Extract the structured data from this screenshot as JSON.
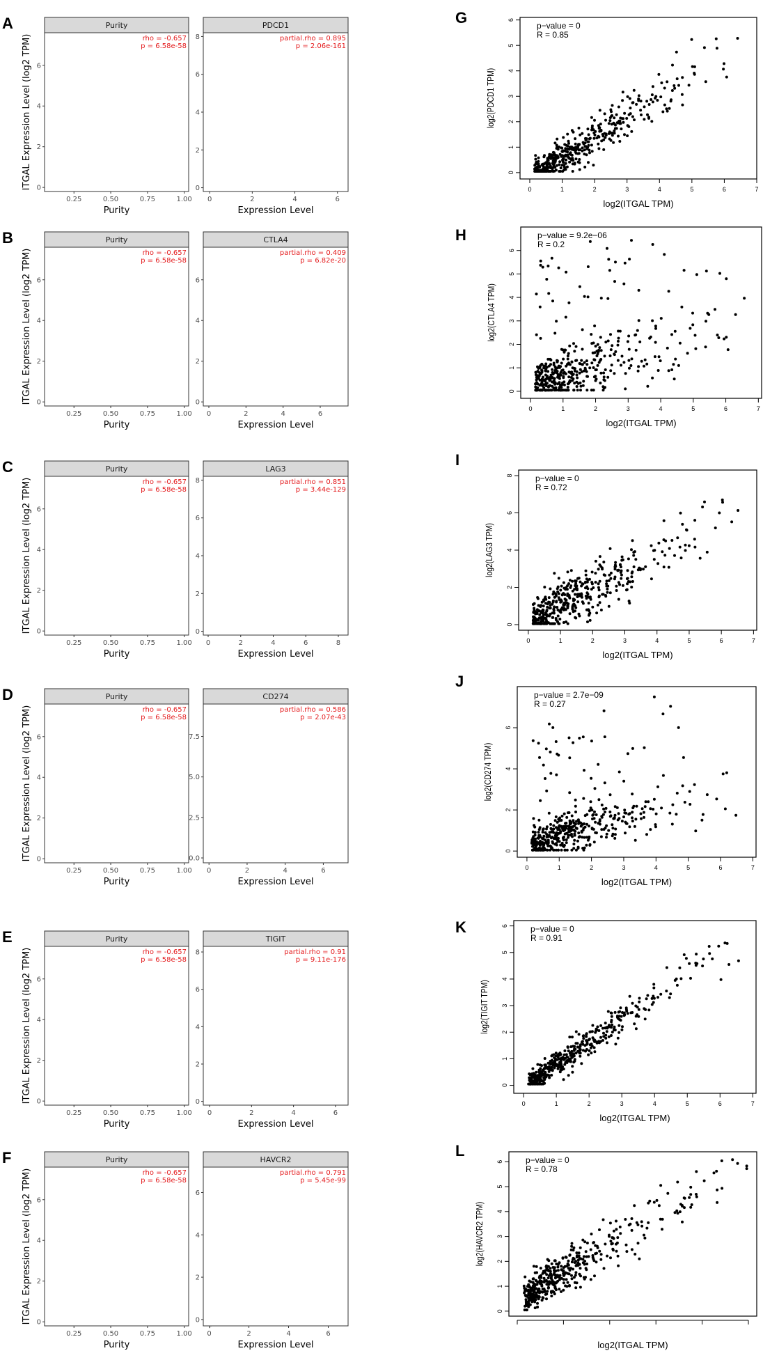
{
  "figure": {
    "left_ylabel": "ITGAL Expression Level (log2 TPM)",
    "left_xlabel_purity": "Purity",
    "left_xlabel_expr": "Expression Level",
    "right_xlabel": "log2(ITGAL TPM)"
  },
  "colors": {
    "fit_line": "#3366ff",
    "stat_text": "#e41a1c",
    "strip": "#d9d9d9",
    "points_left": "#333333",
    "points_right": "#000000"
  },
  "chart_data": [
    {
      "id": "A-purity",
      "letter": "A",
      "type": "scatter",
      "strip": "Purity",
      "xlabel": "Purity",
      "stat1": "rho = -0.657",
      "stat2": "p = 6.58e-58",
      "rho": -0.657,
      "p": "6.58e-58",
      "xlim": [
        0.05,
        1.03
      ],
      "ylim": [
        -0.2,
        7.6
      ],
      "xticks": [
        "0.25",
        "0.50",
        "0.75",
        "1.00"
      ],
      "yticks": [
        "0",
        "2",
        "4",
        "6"
      ],
      "fit": [
        [
          0.1,
          5.7
        ],
        [
          0.98,
          1.7
        ]
      ],
      "n": 400,
      "x_dist": "purity",
      "noise": 1.15
    },
    {
      "id": "A-PDCD1",
      "type": "scatter",
      "strip": "PDCD1",
      "xlabel": "Expression Level",
      "stat1": "partial.rho = 0.895",
      "stat2": "p = 2.06e-161",
      "rho": 0.895,
      "p": "2.06e-161",
      "xlim": [
        -0.3,
        6.5
      ],
      "ylim": [
        -0.2,
        8.2
      ],
      "xticks": [
        "0",
        "2",
        "4",
        "6"
      ],
      "yticks": [
        "0",
        "2",
        "4",
        "6",
        "8"
      ],
      "fit": [
        [
          0,
          1.2
        ],
        [
          6,
          7.3
        ]
      ],
      "n": 400,
      "x_dist": "expr",
      "x_scale": 1.6,
      "x_max": 6.3,
      "noise": 0.6
    },
    {
      "id": "B-purity",
      "letter": "B",
      "type": "scatter",
      "strip": "Purity",
      "xlabel": "Purity",
      "stat1": "rho = -0.657",
      "stat2": "p = 6.58e-58",
      "rho": -0.657,
      "p": "6.58e-58",
      "xlim": [
        0.05,
        1.03
      ],
      "ylim": [
        -0.2,
        7.6
      ],
      "xticks": [
        "0.25",
        "0.50",
        "0.75",
        "1.00"
      ],
      "yticks": [
        "0",
        "2",
        "4",
        "6"
      ],
      "fit": [
        [
          0.1,
          5.7
        ],
        [
          0.98,
          1.7
        ]
      ],
      "n": 400,
      "x_dist": "purity",
      "noise": 1.15
    },
    {
      "id": "B-CTLA4",
      "type": "scatter",
      "strip": "CTLA4",
      "xlabel": "Expression Level",
      "stat1": "partial.rho = 0.409",
      "stat2": "p = 6.82e-20",
      "rho": 0.409,
      "p": "6.82e-20",
      "xlim": [
        -0.3,
        7.5
      ],
      "ylim": [
        -0.2,
        7.6
      ],
      "xticks": [
        "0",
        "2",
        "4",
        "6"
      ],
      "yticks": [
        "0",
        "2",
        "4",
        "6"
      ],
      "fit": [
        [
          0,
          1.9
        ],
        [
          7.2,
          6.4
        ]
      ],
      "n": 400,
      "x_dist": "expr",
      "x_scale": 1.3,
      "x_max": 7.2,
      "noise": 1.3
    },
    {
      "id": "C-purity",
      "letter": "C",
      "type": "scatter",
      "strip": "Purity",
      "xlabel": "Purity",
      "stat1": "rho = -0.657",
      "stat2": "p = 6.58e-58",
      "rho": -0.657,
      "p": "6.58e-58",
      "xlim": [
        0.05,
        1.03
      ],
      "ylim": [
        -0.2,
        7.6
      ],
      "xticks": [
        "0.25",
        "0.50",
        "0.75",
        "1.00"
      ],
      "yticks": [
        "0",
        "2",
        "4",
        "6"
      ],
      "fit": [
        [
          0.1,
          5.7
        ],
        [
          0.98,
          1.7
        ]
      ],
      "n": 400,
      "x_dist": "purity",
      "noise": 1.15
    },
    {
      "id": "C-LAG3",
      "type": "scatter",
      "strip": "LAG3",
      "xlabel": "Expression Level",
      "stat1": "partial.rho = 0.851",
      "stat2": "p = 3.44e-129",
      "rho": 0.851,
      "p": "3.44e-129",
      "xlim": [
        -0.3,
        8.6
      ],
      "ylim": [
        -0.2,
        8.2
      ],
      "xticks": [
        "0",
        "2",
        "4",
        "6",
        "8"
      ],
      "yticks": [
        "0",
        "2",
        "4",
        "6",
        "8"
      ],
      "fit": [
        [
          0,
          0.9
        ],
        [
          8,
          7.3
        ]
      ],
      "n": 400,
      "x_dist": "expr",
      "x_scale": 2.2,
      "x_max": 8.3,
      "noise": 0.75
    },
    {
      "id": "D-purity",
      "letter": "D",
      "type": "scatter",
      "strip": "Purity",
      "xlabel": "Purity",
      "stat1": "rho = -0.657",
      "stat2": "p = 6.58e-58",
      "rho": -0.657,
      "p": "6.58e-58",
      "xlim": [
        0.05,
        1.03
      ],
      "ylim": [
        -0.2,
        7.6
      ],
      "xticks": [
        "0.25",
        "0.50",
        "0.75",
        "1.00"
      ],
      "yticks": [
        "0",
        "2",
        "4",
        "6"
      ],
      "fit": [
        [
          0.1,
          5.7
        ],
        [
          0.98,
          1.7
        ]
      ],
      "n": 400,
      "x_dist": "purity",
      "noise": 1.15
    },
    {
      "id": "D-CD274",
      "type": "scatter",
      "strip": "CD274",
      "xlabel": "Expression Level",
      "stat1": "partial.rho = 0.586",
      "stat2": "p = 2.07e-43",
      "rho": 0.586,
      "p": "2.07e-43",
      "xlim": [
        -0.3,
        7.3
      ],
      "ylim": [
        -0.3,
        9.5
      ],
      "xticks": [
        "0",
        "2",
        "4",
        "6"
      ],
      "yticks": [
        "0.0",
        "2.5",
        "5.0",
        "7.5"
      ],
      "ytick_values": [
        0,
        2.5,
        5,
        7.5
      ],
      "fit": [
        [
          0,
          1.6
        ],
        [
          7,
          8.6
        ]
      ],
      "n": 400,
      "x_dist": "expr",
      "x_scale": 1.2,
      "x_max": 7.1,
      "noise": 1.2
    },
    {
      "id": "E-purity",
      "letter": "E",
      "type": "scatter",
      "strip": "Purity",
      "xlabel": "Purity",
      "stat1": "rho = -0.657",
      "stat2": "p = 6.58e-58",
      "rho": -0.657,
      "p": "6.58e-58",
      "xlim": [
        0.05,
        1.03
      ],
      "ylim": [
        -0.2,
        7.6
      ],
      "xticks": [
        "0.25",
        "0.50",
        "0.75",
        "1.00"
      ],
      "yticks": [
        "0",
        "2",
        "4",
        "6"
      ],
      "fit": [
        [
          0.1,
          5.7
        ],
        [
          0.98,
          1.7
        ]
      ],
      "n": 400,
      "x_dist": "purity",
      "noise": 1.15
    },
    {
      "id": "E-TIGIT",
      "type": "scatter",
      "strip": "TIGIT",
      "xlabel": "Expression Level",
      "stat1": "partial.rho = 0.91",
      "stat2": "p = 9.11e-176",
      "rho": 0.91,
      "p": "9.11e-176",
      "xlim": [
        -0.3,
        6.6
      ],
      "ylim": [
        -0.2,
        8.3
      ],
      "xticks": [
        "0",
        "2",
        "4",
        "6"
      ],
      "yticks": [
        "0",
        "2",
        "4",
        "6",
        "8"
      ],
      "fit": [
        [
          0,
          0.6
        ],
        [
          6.5,
          7.5
        ]
      ],
      "n": 400,
      "x_dist": "expr",
      "x_scale": 1.7,
      "x_max": 6.4,
      "noise": 0.5
    },
    {
      "id": "F-purity",
      "letter": "F",
      "type": "scatter",
      "strip": "Purity",
      "xlabel": "Purity",
      "stat1": "rho = -0.657",
      "stat2": "p = 6.58e-58",
      "rho": -0.657,
      "p": "6.58e-58",
      "xlim": [
        0.05,
        1.03
      ],
      "ylim": [
        -0.2,
        7.6
      ],
      "xticks": [
        "0.25",
        "0.50",
        "0.75",
        "1.00"
      ],
      "yticks": [
        "0",
        "2",
        "4",
        "6"
      ],
      "fit": [
        [
          0.1,
          5.7
        ],
        [
          0.98,
          1.7
        ]
      ],
      "n": 400,
      "x_dist": "purity",
      "noise": 1.15
    },
    {
      "id": "F-HAVCR2",
      "type": "scatter",
      "strip": "HAVCR2",
      "xlabel": "Expression Level",
      "stat1": "partial.rho = 0.791",
      "stat2": "p = 5.45e-99",
      "rho": 0.791,
      "p": "5.45e-99",
      "xlim": [
        -0.3,
        7.0
      ],
      "ylim": [
        -0.3,
        7.2
      ],
      "xticks": [
        "0",
        "2",
        "4",
        "6"
      ],
      "yticks": [
        "0",
        "2",
        "4",
        "6"
      ],
      "fit": [
        [
          0,
          -0.1
        ],
        [
          6.7,
          6.9
        ]
      ],
      "n": 400,
      "x_dist": "expr",
      "x_scale": 2.1,
      "x_max": 6.8,
      "noise": 0.8
    },
    {
      "id": "G",
      "letter": "G",
      "type": "scatter",
      "ylabel": "log2(PDCD1 TPM)",
      "xlabel": "log2(ITGAL TPM)",
      "stat1": "p−value = 0",
      "stat2": "R = 0.85",
      "R": 0.85,
      "p": "0",
      "xlim": [
        -0.3,
        7.0
      ],
      "ylim": [
        -0.25,
        6.1
      ],
      "xticks": [
        "0",
        "1",
        "2",
        "3",
        "4",
        "5",
        "6",
        "7"
      ],
      "yticks": [
        "0",
        "1",
        "2",
        "3",
        "4",
        "5",
        "6"
      ],
      "model": [
        -0.2,
        0.8
      ],
      "n": 450,
      "noise": 0.5,
      "x_scale": 1.6
    },
    {
      "id": "H",
      "letter": "H",
      "type": "scatter",
      "ylabel": "log2(CTLA4 TPM)",
      "xlabel": "log2(ITGAL TPM)",
      "stat1": "p−value = 9.2e−06",
      "stat2": "R = 0.2",
      "R": 0.2,
      "p": "9.2e-06",
      "xlim": [
        -0.3,
        7.1
      ],
      "ylim": [
        -0.3,
        7.0
      ],
      "xticks": [
        "0",
        "1",
        "2",
        "3",
        "4",
        "5",
        "6",
        "7"
      ],
      "yticks": [
        "0",
        "1",
        "2",
        "3",
        "4",
        "5",
        "6"
      ],
      "model": [
        0.2,
        0.45
      ],
      "n": 450,
      "noise": 0.8,
      "x_scale": 1.6
    },
    {
      "id": "I",
      "letter": "I",
      "type": "scatter",
      "ylabel": "log2(LAG3 TPM)",
      "xlabel": "log2(ITGAL TPM)",
      "stat1": "p−value = 0",
      "stat2": "R = 0.72",
      "R": 0.72,
      "p": "0",
      "xlim": [
        -0.3,
        7.1
      ],
      "ylim": [
        -0.3,
        8.3
      ],
      "xticks": [
        "0",
        "1",
        "2",
        "3",
        "4",
        "5",
        "6",
        "7"
      ],
      "yticks": [
        "0",
        "2",
        "4",
        "6",
        "8"
      ],
      "model": [
        0.0,
        1.0
      ],
      "n": 450,
      "noise": 0.9,
      "x_scale": 1.6
    },
    {
      "id": "J",
      "letter": "J",
      "type": "scatter",
      "ylabel": "log2(CD274 TPM)",
      "xlabel": "log2(ITGAL TPM)",
      "stat1": "p−value = 2.7e−09",
      "stat2": "R = 0.27",
      "R": 0.27,
      "p": "2.7e-09",
      "xlim": [
        -0.3,
        7.1
      ],
      "ylim": [
        -0.3,
        8.0
      ],
      "xticks": [
        "0",
        "1",
        "2",
        "3",
        "4",
        "5",
        "6",
        "7"
      ],
      "yticks": [
        "0",
        "2",
        "4",
        "6"
      ],
      "model": [
        0.3,
        0.4
      ],
      "n": 450,
      "noise": 0.7,
      "x_scale": 1.6
    },
    {
      "id": "K",
      "letter": "K",
      "type": "scatter",
      "ylabel": "log2(TIGIT TPM)",
      "xlabel": "log2(ITGAL TPM)",
      "stat1": "p−value = 0",
      "stat2": "R = 0.91",
      "R": 0.91,
      "p": "0",
      "xlim": [
        -0.3,
        7.1
      ],
      "ylim": [
        -0.3,
        6.2
      ],
      "xticks": [
        "0",
        "1",
        "2",
        "3",
        "4",
        "5",
        "6",
        "7"
      ],
      "yticks": [
        "0",
        "1",
        "2",
        "3",
        "4",
        "5",
        "6"
      ],
      "model": [
        -0.1,
        0.85
      ],
      "n": 450,
      "noise": 0.35,
      "x_scale": 1.6
    },
    {
      "id": "L",
      "letter": "L",
      "type": "scatter",
      "ylabel": "log2(HAVCR2 TPM)",
      "xlabel": "log2(ITGAL TPM)",
      "stat1": "p−value = 0",
      "stat2": "R = 0.78",
      "R": 0.78,
      "p": "0",
      "xlim": [
        -0.3,
        7.1
      ],
      "ylim": [
        -0.2,
        6.4
      ],
      "xticks": [],
      "xtick_marks": 6,
      "yticks": [
        "0",
        "1",
        "2",
        "3",
        "4",
        "5",
        "6"
      ],
      "model": [
        0.5,
        0.8
      ],
      "n": 450,
      "noise": 0.55,
      "x_scale": 1.6
    }
  ]
}
